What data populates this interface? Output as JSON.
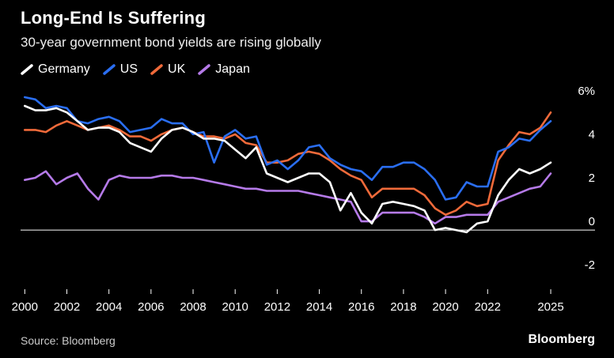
{
  "header": {
    "title": "Long-End Is Suffering",
    "subtitle": "30-year government bond yields are rising globally"
  },
  "footer": {
    "source": "Source: Bloomberg",
    "brand": "Bloomberg"
  },
  "colors": {
    "Germany": "#ffffff",
    "US": "#2a6ef2",
    "UK": "#f06a3a",
    "Japan": "#b57ae8",
    "zero_line": "#ffffff",
    "tick_text": "#ffffff"
  },
  "chart_data": {
    "type": "line",
    "title": "Long-End Is Suffering",
    "subtitle": "30-year government bond yields are rising globally",
    "xlabel": "",
    "ylabel": "",
    "xlim": [
      1999.8,
      2025.6
    ],
    "ylim": [
      -2.5,
      6.5
    ],
    "x_ticks": [
      "2000",
      "2002",
      "2004",
      "2006",
      "2008",
      "2010",
      "2012",
      "2014",
      "2016",
      "2018",
      "2020",
      "2022",
      "2025"
    ],
    "x_tick_values": [
      2000,
      2002,
      2004,
      2006,
      2008,
      2010,
      2012,
      2014,
      2016,
      2018,
      2020,
      2022,
      2025
    ],
    "y_ticks": [
      "6%",
      "4",
      "2",
      "0",
      "-2"
    ],
    "y_tick_values": [
      6,
      4,
      2,
      0,
      -2
    ],
    "grid": false,
    "legend": "top-left",
    "x": [
      2000,
      2000.5,
      2001,
      2001.5,
      2002,
      2002.5,
      2003,
      2003.5,
      2004,
      2004.5,
      2005,
      2005.5,
      2006,
      2006.5,
      2007,
      2007.5,
      2008,
      2008.5,
      2009,
      2009.5,
      2010,
      2010.5,
      2011,
      2011.5,
      2012,
      2012.5,
      2013,
      2013.5,
      2014,
      2014.5,
      2015,
      2015.5,
      2016,
      2016.5,
      2017,
      2017.5,
      2018,
      2018.5,
      2019,
      2019.5,
      2020,
      2020.5,
      2021,
      2021.5,
      2022,
      2022.5,
      2023,
      2023.5,
      2024,
      2024.5,
      2025
    ],
    "series": [
      {
        "name": "Germany",
        "values": [
          5.7,
          5.5,
          5.5,
          5.6,
          5.4,
          5.0,
          4.6,
          4.7,
          4.7,
          4.5,
          4.0,
          3.8,
          3.6,
          4.2,
          4.6,
          4.7,
          4.5,
          4.2,
          4.2,
          4.1,
          3.7,
          3.3,
          3.8,
          2.6,
          2.4,
          2.2,
          2.4,
          2.6,
          2.6,
          2.2,
          0.9,
          1.7,
          0.8,
          0.3,
          1.2,
          1.3,
          1.2,
          1.1,
          0.9,
          0.0,
          0.1,
          0.0,
          -0.1,
          0.3,
          0.4,
          1.6,
          2.3,
          2.8,
          2.6,
          2.8,
          3.1
        ]
      },
      {
        "name": "US",
        "values": [
          6.1,
          6.0,
          5.6,
          5.7,
          5.6,
          5.0,
          4.9,
          5.1,
          5.2,
          5.0,
          4.5,
          4.6,
          4.7,
          5.1,
          4.9,
          4.9,
          4.4,
          4.5,
          3.1,
          4.3,
          4.6,
          4.2,
          4.3,
          3.0,
          3.2,
          2.8,
          3.2,
          3.8,
          3.9,
          3.3,
          3.0,
          2.8,
          2.7,
          2.3,
          2.9,
          2.9,
          3.1,
          3.1,
          2.8,
          2.3,
          1.4,
          1.5,
          2.2,
          2.0,
          2.0,
          3.6,
          3.8,
          4.2,
          4.1,
          4.6,
          5.0
        ]
      },
      {
        "name": "UK",
        "values": [
          4.6,
          4.6,
          4.5,
          4.8,
          5.0,
          4.8,
          4.6,
          4.7,
          4.8,
          4.6,
          4.3,
          4.3,
          4.1,
          4.4,
          4.6,
          4.7,
          4.5,
          4.3,
          4.3,
          4.2,
          4.4,
          4.0,
          3.9,
          3.1,
          3.1,
          3.2,
          3.5,
          3.6,
          3.5,
          3.2,
          2.8,
          2.5,
          2.3,
          1.5,
          1.9,
          1.9,
          1.9,
          1.9,
          1.6,
          1.0,
          0.7,
          0.9,
          1.3,
          1.1,
          1.2,
          3.2,
          3.9,
          4.5,
          4.4,
          4.7,
          5.4
        ]
      },
      {
        "name": "Japan",
        "values": [
          2.3,
          2.4,
          2.7,
          2.1,
          2.4,
          2.6,
          1.9,
          1.4,
          2.3,
          2.5,
          2.4,
          2.4,
          2.4,
          2.5,
          2.5,
          2.4,
          2.4,
          2.3,
          2.2,
          2.1,
          2.0,
          1.9,
          1.9,
          1.8,
          1.8,
          1.8,
          1.8,
          1.7,
          1.6,
          1.5,
          1.4,
          1.3,
          0.4,
          0.4,
          0.8,
          0.8,
          0.8,
          0.8,
          0.6,
          0.3,
          0.6,
          0.6,
          0.7,
          0.7,
          0.7,
          1.3,
          1.5,
          1.7,
          1.9,
          2.0,
          2.6
        ]
      }
    ]
  }
}
